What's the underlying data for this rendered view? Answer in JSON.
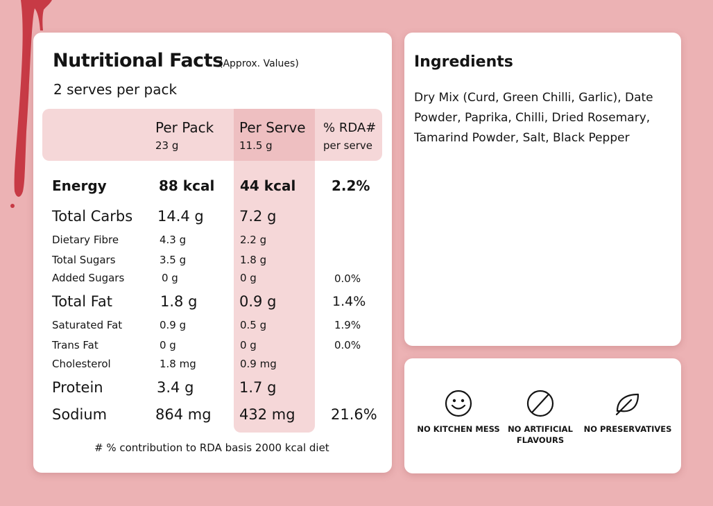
{
  "colors": {
    "background": "#ecb2b4",
    "card": "#ffffff",
    "highlight": "#f5d7d8",
    "highlight_dark": "#eebfc1",
    "drip": "#c73a45",
    "text": "#141414"
  },
  "nutrition": {
    "title": "Nutritional Facts",
    "subtitle": "(Approx. Values)",
    "serves": "2 serves per pack",
    "headers": {
      "per_pack_label": "Per Pack",
      "per_pack_weight": "23 g",
      "per_serve_label": "Per Serve",
      "per_serve_weight": "11.5 g",
      "rda_label": "% RDA#",
      "rda_sub": "per serve"
    },
    "rows": [
      {
        "label": "Energy",
        "pack": "88 kcal",
        "serve": "44 kcal",
        "rda": "2.2%"
      },
      {
        "label": "Total Carbs",
        "pack": "14.4 g",
        "serve": "7.2 g",
        "rda": ""
      },
      {
        "label": "Dietary Fibre",
        "pack": "4.3 g",
        "serve": "2.2 g",
        "rda": ""
      },
      {
        "label": "Total Sugars",
        "pack": "3.5 g",
        "serve": "1.8 g",
        "rda": ""
      },
      {
        "label": "Added Sugars",
        "pack": "0 g",
        "serve": "0 g",
        "rda": "0.0%"
      },
      {
        "label": "Total Fat",
        "pack": "1.8 g",
        "serve": "0.9 g",
        "rda": "1.4%"
      },
      {
        "label": "Saturated Fat",
        "pack": "0.9 g",
        "serve": "0.5 g",
        "rda": "1.9%"
      },
      {
        "label": "Trans Fat",
        "pack": "0 g",
        "serve": "0 g",
        "rda": "0.0%"
      },
      {
        "label": "Cholesterol",
        "pack": "1.8 mg",
        "serve": "0.9 mg",
        "rda": ""
      },
      {
        "label": "Protein",
        "pack": "3.4 g",
        "serve": "1.7 g",
        "rda": ""
      },
      {
        "label": "Sodium",
        "pack": "864 mg",
        "serve": "432 mg",
        "rda": "21.6%"
      }
    ],
    "footnote": "# % contribution to RDA basis 2000 kcal diet"
  },
  "ingredients": {
    "title": "Ingredients",
    "text": "Dry Mix (Curd, Green Chilli, Garlic), Date Powder, Paprika, Chilli, Dried Rosemary, Tamarind Powder, Salt, Black Pepper"
  },
  "badges": [
    {
      "icon": "smiley-icon",
      "label": "NO KITCHEN MESS"
    },
    {
      "icon": "prohibited-icon",
      "label": "NO ARTIFICIAL\nFLAVOURS"
    },
    {
      "icon": "leaf-icon",
      "label": "NO PRESERVATIVES"
    }
  ]
}
